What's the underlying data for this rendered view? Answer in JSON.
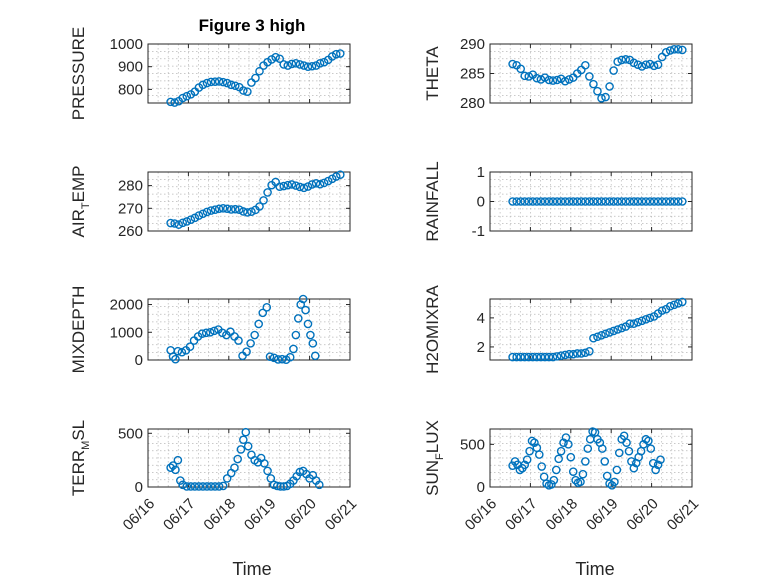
{
  "figure": {
    "title": "Figure 3 high",
    "xlabel": "Time"
  },
  "colors": {
    "marker": "#0072BD",
    "axis": "#262626",
    "grid": "#b8b8b8"
  },
  "chart_data": [
    {
      "id": "pressure",
      "type": "scatter",
      "title": "Figure 3 high",
      "ylabel": "PRESSURE",
      "ylabel_sub": "",
      "ylabel_tail": "",
      "xlim": [
        "06/16",
        "06/21"
      ],
      "ylim": [
        740,
        1000
      ],
      "yticks": [
        800,
        900,
        1000
      ],
      "xticks": [
        "06/16",
        "06/17",
        "06/18",
        "06/19",
        "06/20",
        "06/21"
      ],
      "show_xticks": false,
      "grid": true,
      "x": [
        0.56,
        0.66,
        0.76,
        0.86,
        0.96,
        1.06,
        1.16,
        1.26,
        1.36,
        1.46,
        1.56,
        1.66,
        1.76,
        1.86,
        1.96,
        2.06,
        2.16,
        2.26,
        2.36,
        2.46,
        2.56,
        2.66,
        2.76,
        2.86,
        2.96,
        3.06,
        3.16,
        3.26,
        3.36,
        3.46,
        3.56,
        3.66,
        3.76,
        3.86,
        3.96,
        4.06,
        4.16,
        4.26,
        4.36,
        4.46,
        4.56,
        4.66,
        4.76
      ],
      "y": [
        745,
        742,
        748,
        762,
        770,
        778,
        790,
        808,
        820,
        828,
        833,
        834,
        835,
        832,
        828,
        820,
        816,
        810,
        795,
        790,
        830,
        850,
        880,
        905,
        920,
        932,
        942,
        935,
        910,
        905,
        912,
        915,
        910,
        905,
        900,
        902,
        905,
        915,
        920,
        930,
        945,
        955,
        958
      ]
    },
    {
      "id": "theta",
      "type": "scatter",
      "ylabel": "THETA",
      "ylabel_sub": "",
      "ylabel_tail": "",
      "xlim": [
        "06/16",
        "06/21"
      ],
      "ylim": [
        280,
        290
      ],
      "yticks": [
        280,
        285,
        290
      ],
      "xticks": [
        "06/16",
        "06/17",
        "06/18",
        "06/19",
        "06/20",
        "06/21"
      ],
      "show_xticks": false,
      "grid": true,
      "x": [
        0.56,
        0.66,
        0.76,
        0.86,
        0.96,
        1.06,
        1.16,
        1.26,
        1.36,
        1.46,
        1.56,
        1.66,
        1.76,
        1.86,
        1.96,
        2.06,
        2.16,
        2.26,
        2.36,
        2.46,
        2.56,
        2.66,
        2.76,
        2.86,
        2.96,
        3.06,
        3.16,
        3.26,
        3.36,
        3.46,
        3.56,
        3.66,
        3.76,
        3.86,
        3.96,
        4.06,
        4.16,
        4.26,
        4.36,
        4.46,
        4.56,
        4.66,
        4.76
      ],
      "y": [
        286.6,
        286.4,
        285.8,
        284.6,
        284.5,
        284.8,
        284.2,
        284.0,
        284.3,
        283.9,
        283.8,
        283.9,
        284.1,
        283.7,
        284.0,
        284.3,
        285.0,
        285.6,
        286.4,
        284.5,
        283.2,
        282.0,
        280.8,
        281.0,
        282.8,
        285.5,
        287.0,
        287.3,
        287.4,
        287.3,
        286.8,
        286.5,
        286.2,
        286.5,
        286.6,
        286.3,
        286.5,
        287.8,
        288.6,
        288.9,
        289.1,
        289.1,
        289.0
      ]
    },
    {
      "id": "air_temp",
      "type": "scatter",
      "ylabel": "AIR",
      "ylabel_sub": "T",
      "ylabel_tail": "EMP",
      "xlim": [
        "06/16",
        "06/21"
      ],
      "ylim": [
        260,
        286
      ],
      "yticks": [
        260,
        270,
        280
      ],
      "xticks": [
        "06/16",
        "06/17",
        "06/18",
        "06/19",
        "06/20",
        "06/21"
      ],
      "show_xticks": false,
      "grid": true,
      "x": [
        0.56,
        0.66,
        0.76,
        0.86,
        0.96,
        1.06,
        1.16,
        1.26,
        1.36,
        1.46,
        1.56,
        1.66,
        1.76,
        1.86,
        1.96,
        2.06,
        2.16,
        2.26,
        2.36,
        2.46,
        2.56,
        2.66,
        2.76,
        2.86,
        2.96,
        3.06,
        3.16,
        3.26,
        3.36,
        3.46,
        3.56,
        3.66,
        3.76,
        3.86,
        3.96,
        4.06,
        4.16,
        4.26,
        4.36,
        4.46,
        4.56,
        4.66,
        4.76
      ],
      "y": [
        263.5,
        263.3,
        262.8,
        263.6,
        264.2,
        265.0,
        265.8,
        266.8,
        267.6,
        268.4,
        269.0,
        269.4,
        269.8,
        270.0,
        269.8,
        269.5,
        269.6,
        269.4,
        268.6,
        268.2,
        268.5,
        269.3,
        270.8,
        273.5,
        277.0,
        280.2,
        281.6,
        279.5,
        279.8,
        280.2,
        280.5,
        280.0,
        279.4,
        279.0,
        279.6,
        280.5,
        281.0,
        280.6,
        281.2,
        282.0,
        283.0,
        284.0,
        284.8
      ]
    },
    {
      "id": "rainfall",
      "type": "scatter",
      "ylabel": "RAINFALL",
      "ylabel_sub": "",
      "ylabel_tail": "",
      "xlim": [
        "06/16",
        "06/21"
      ],
      "ylim": [
        -1,
        1
      ],
      "yticks": [
        -1,
        0,
        1
      ],
      "xticks": [
        "06/16",
        "06/17",
        "06/18",
        "06/19",
        "06/20",
        "06/21"
      ],
      "show_xticks": false,
      "grid": true,
      "x": [
        0.56,
        0.66,
        0.76,
        0.86,
        0.96,
        1.06,
        1.16,
        1.26,
        1.36,
        1.46,
        1.56,
        1.66,
        1.76,
        1.86,
        1.96,
        2.06,
        2.16,
        2.26,
        2.36,
        2.46,
        2.56,
        2.66,
        2.76,
        2.86,
        2.96,
        3.06,
        3.16,
        3.26,
        3.36,
        3.46,
        3.56,
        3.66,
        3.76,
        3.86,
        3.96,
        4.06,
        4.16,
        4.26,
        4.36,
        4.46,
        4.56,
        4.66,
        4.76
      ],
      "y": [
        0,
        0,
        0,
        0,
        0,
        0,
        0,
        0,
        0,
        0,
        0,
        0,
        0,
        0,
        0,
        0,
        0,
        0,
        0,
        0,
        0,
        0,
        0,
        0,
        0,
        0,
        0,
        0,
        0,
        0,
        0,
        0,
        0,
        0,
        0,
        0,
        0,
        0,
        0,
        0,
        0,
        0,
        0
      ]
    },
    {
      "id": "mixdepth",
      "type": "scatter",
      "ylabel": "MIXDEPTH",
      "ylabel_sub": "",
      "ylabel_tail": "",
      "xlim": [
        "06/16",
        "06/21"
      ],
      "ylim": [
        0,
        2200
      ],
      "yticks": [
        0,
        1000,
        2000
      ],
      "xticks": [
        "06/16",
        "06/17",
        "06/18",
        "06/19",
        "06/20",
        "06/21"
      ],
      "show_xticks": false,
      "grid": true,
      "x": [
        0.56,
        0.62,
        0.68,
        0.74,
        0.84,
        0.94,
        1.04,
        1.14,
        1.24,
        1.34,
        1.44,
        1.54,
        1.64,
        1.74,
        1.84,
        1.94,
        2.04,
        2.14,
        2.24,
        2.34,
        2.44,
        2.54,
        2.64,
        2.74,
        2.84,
        2.94,
        3.02,
        3.12,
        3.22,
        3.32,
        3.42,
        3.52,
        3.6,
        3.66,
        3.72,
        3.78,
        3.84,
        3.9,
        3.96,
        4.02,
        4.08,
        4.14
      ],
      "y": [
        350,
        120,
        30,
        320,
        280,
        350,
        480,
        700,
        850,
        950,
        980,
        1000,
        1050,
        1100,
        980,
        900,
        1020,
        850,
        700,
        150,
        300,
        600,
        900,
        1300,
        1700,
        1900,
        120,
        80,
        20,
        30,
        10,
        100,
        400,
        900,
        1500,
        2000,
        2200,
        1800,
        1300,
        900,
        600,
        150
      ]
    },
    {
      "id": "h2omixra",
      "type": "scatter",
      "ylabel": "H2OMIXRA",
      "ylabel_sub": "",
      "ylabel_tail": "",
      "xlim": [
        "06/16",
        "06/21"
      ],
      "ylim": [
        1.1,
        5.3
      ],
      "yticks": [
        2,
        4
      ],
      "xticks": [
        "06/16",
        "06/17",
        "06/18",
        "06/19",
        "06/20",
        "06/21"
      ],
      "show_xticks": false,
      "grid": true,
      "x": [
        0.56,
        0.66,
        0.76,
        0.86,
        0.96,
        1.06,
        1.16,
        1.26,
        1.36,
        1.46,
        1.56,
        1.66,
        1.76,
        1.86,
        1.96,
        2.06,
        2.16,
        2.26,
        2.36,
        2.46,
        2.56,
        2.66,
        2.76,
        2.86,
        2.96,
        3.06,
        3.16,
        3.26,
        3.36,
        3.46,
        3.56,
        3.66,
        3.76,
        3.86,
        3.96,
        4.06,
        4.16,
        4.26,
        4.36,
        4.46,
        4.56,
        4.66,
        4.76
      ],
      "y": [
        1.3,
        1.3,
        1.3,
        1.3,
        1.3,
        1.3,
        1.3,
        1.3,
        1.3,
        1.3,
        1.3,
        1.35,
        1.4,
        1.45,
        1.5,
        1.5,
        1.55,
        1.55,
        1.6,
        1.7,
        2.6,
        2.7,
        2.8,
        2.9,
        3.0,
        3.1,
        3.2,
        3.3,
        3.4,
        3.6,
        3.6,
        3.7,
        3.8,
        3.9,
        4.0,
        4.1,
        4.3,
        4.5,
        4.6,
        4.8,
        4.9,
        5.0,
        5.1
      ]
    },
    {
      "id": "terr_msl",
      "type": "scatter",
      "ylabel": "TERR",
      "ylabel_sub": "M",
      "ylabel_tail": "SL",
      "xlim": [
        "06/16",
        "06/21"
      ],
      "ylim": [
        0,
        540
      ],
      "yticks": [
        0,
        500
      ],
      "xticks": [
        "06/16",
        "06/17",
        "06/18",
        "06/19",
        "06/20",
        "06/21"
      ],
      "show_xticks": true,
      "grid": true,
      "x": [
        0.56,
        0.62,
        0.68,
        0.74,
        0.8,
        0.86,
        0.96,
        1.06,
        1.16,
        1.26,
        1.36,
        1.46,
        1.56,
        1.66,
        1.76,
        1.86,
        1.96,
        2.06,
        2.14,
        2.22,
        2.3,
        2.36,
        2.42,
        2.48,
        2.56,
        2.64,
        2.72,
        2.8,
        2.88,
        2.96,
        3.04,
        3.12,
        3.2,
        3.28,
        3.36,
        3.44,
        3.52,
        3.6,
        3.68,
        3.76,
        3.84,
        3.92,
        4.0,
        4.08,
        4.16,
        4.24
      ],
      "y": [
        180,
        200,
        160,
        250,
        60,
        20,
        5,
        5,
        5,
        5,
        5,
        5,
        5,
        5,
        5,
        10,
        80,
        130,
        180,
        260,
        350,
        440,
        510,
        380,
        300,
        250,
        230,
        270,
        220,
        150,
        80,
        20,
        10,
        5,
        5,
        10,
        30,
        60,
        100,
        140,
        150,
        120,
        80,
        110,
        60,
        20
      ]
    },
    {
      "id": "sun_flux",
      "type": "scatter",
      "ylabel": "SUN",
      "ylabel_sub": "F",
      "ylabel_tail": "LUX",
      "xlim": [
        "06/16",
        "06/21"
      ],
      "ylim": [
        0,
        680
      ],
      "yticks": [
        0,
        500
      ],
      "xticks": [
        "06/16",
        "06/17",
        "06/18",
        "06/19",
        "06/20",
        "06/21"
      ],
      "show_xticks": true,
      "grid": true,
      "x": [
        0.56,
        0.62,
        0.68,
        0.74,
        0.8,
        0.86,
        0.92,
        0.98,
        1.04,
        1.1,
        1.16,
        1.22,
        1.28,
        1.34,
        1.4,
        1.46,
        1.52,
        1.58,
        1.64,
        1.7,
        1.76,
        1.82,
        1.88,
        1.94,
        2.0,
        2.06,
        2.12,
        2.18,
        2.24,
        2.3,
        2.36,
        2.42,
        2.48,
        2.54,
        2.6,
        2.66,
        2.72,
        2.78,
        2.84,
        2.9,
        2.96,
        3.02,
        3.08,
        3.14,
        3.2,
        3.26,
        3.32,
        3.38,
        3.44,
        3.5,
        3.56,
        3.62,
        3.68,
        3.74,
        3.8,
        3.86,
        3.92,
        3.98,
        4.04,
        4.1,
        4.16,
        4.22
      ],
      "y": [
        250,
        300,
        260,
        200,
        220,
        260,
        320,
        420,
        540,
        520,
        460,
        380,
        240,
        120,
        40,
        20,
        30,
        80,
        200,
        330,
        420,
        520,
        580,
        500,
        350,
        180,
        80,
        50,
        60,
        150,
        300,
        450,
        560,
        650,
        640,
        560,
        520,
        450,
        300,
        130,
        40,
        20,
        60,
        200,
        400,
        560,
        600,
        520,
        420,
        300,
        220,
        280,
        350,
        420,
        500,
        560,
        540,
        450,
        280,
        200,
        260,
        320
      ]
    }
  ]
}
